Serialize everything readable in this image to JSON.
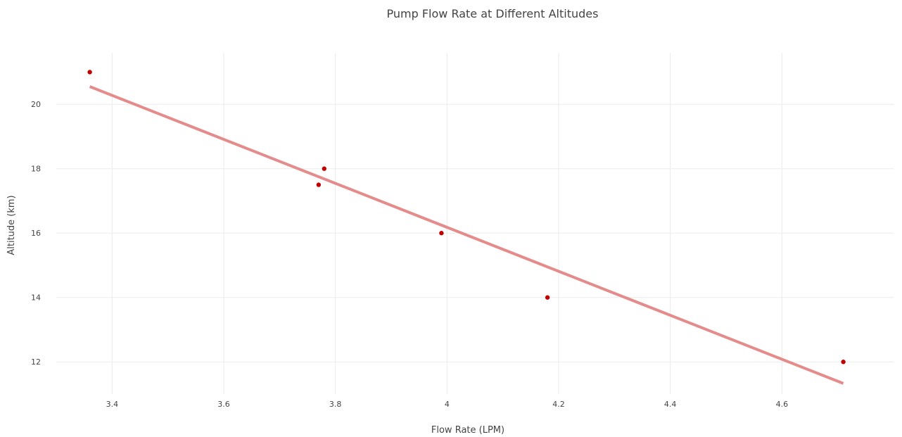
{
  "chart_data": {
    "type": "scatter",
    "title": "Pump Flow Rate at Different Altitudes",
    "xlabel": "Flow Rate (LPM)",
    "ylabel": "Altitude (km)",
    "xlim": [
      3.3,
      4.8
    ],
    "ylim": [
      11,
      21.6
    ],
    "x_ticks": [
      3.4,
      3.6,
      3.8,
      4,
      4.2,
      4.4,
      4.6
    ],
    "y_ticks": [
      12,
      14,
      16,
      18,
      20
    ],
    "grid": true,
    "legend": "none",
    "series": [
      {
        "type": "scatter",
        "x": [
          3.36,
          3.77,
          3.78,
          3.99,
          4.18,
          4.71
        ],
        "y": [
          21,
          17.5,
          18,
          16,
          14,
          12
        ],
        "color": "#c00000"
      },
      {
        "type": "line",
        "x": [
          3.36,
          4.71
        ],
        "y": [
          20.55,
          11.33
        ],
        "color": "#e48b8b"
      }
    ]
  }
}
